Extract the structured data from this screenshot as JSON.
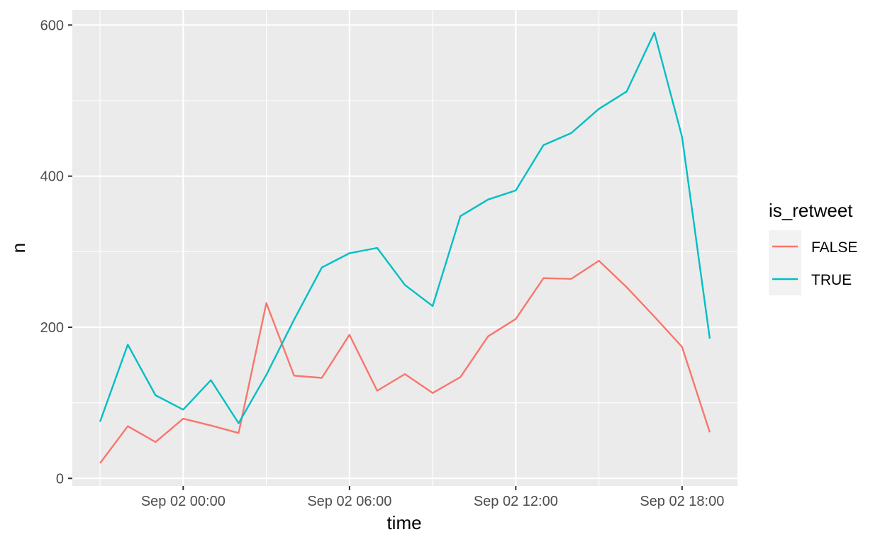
{
  "chart_data": {
    "type": "line",
    "xlabel": "time",
    "ylabel": "n",
    "x_tick_labels": [
      "Sep 02 00:00",
      "Sep 02 06:00",
      "Sep 02 12:00",
      "Sep 02 18:00"
    ],
    "x_tick_times": [
      "2018-09-02T00:00",
      "2018-09-02T06:00",
      "2018-09-02T12:00",
      "2018-09-02T18:00"
    ],
    "y_ticks": [
      0,
      200,
      400,
      600
    ],
    "y_tick_labels": [
      "0",
      "200",
      "400",
      "600"
    ],
    "x_range": [
      "2018-09-01T20:00",
      "2018-09-02T20:00"
    ],
    "ylim": [
      -10,
      620
    ],
    "grid": true,
    "legend": {
      "title": "is_retweet",
      "position": "right"
    },
    "x": [
      "2018-09-01T21:00",
      "2018-09-01T22:00",
      "2018-09-01T23:00",
      "2018-09-02T00:00",
      "2018-09-02T01:00",
      "2018-09-02T02:00",
      "2018-09-02T03:00",
      "2018-09-02T04:00",
      "2018-09-02T05:00",
      "2018-09-02T06:00",
      "2018-09-02T07:00",
      "2018-09-02T08:00",
      "2018-09-02T09:00",
      "2018-09-02T10:00",
      "2018-09-02T11:00",
      "2018-09-02T12:00",
      "2018-09-02T13:00",
      "2018-09-02T14:00",
      "2018-09-02T15:00",
      "2018-09-02T16:00",
      "2018-09-02T17:00",
      "2018-09-02T18:00",
      "2018-09-02T19:00"
    ],
    "series": [
      {
        "name": "FALSE",
        "color": "#F8766D",
        "values": [
          20,
          69,
          48,
          79,
          70,
          60,
          232,
          136,
          133,
          190,
          116,
          138,
          113,
          134,
          188,
          211,
          265,
          264,
          288,
          253,
          214,
          174,
          61
        ]
      },
      {
        "name": "TRUE",
        "color": "#00BFC4",
        "values": [
          75,
          177,
          110,
          91,
          130,
          73,
          137,
          210,
          279,
          298,
          305,
          256,
          228,
          347,
          369,
          381,
          441,
          457,
          489,
          512,
          590,
          452,
          185
        ]
      }
    ]
  },
  "colors": {
    "panel_background": "#EBEBEB",
    "grid": "#FFFFFF",
    "legend_key_background": "#F2F2F2"
  }
}
